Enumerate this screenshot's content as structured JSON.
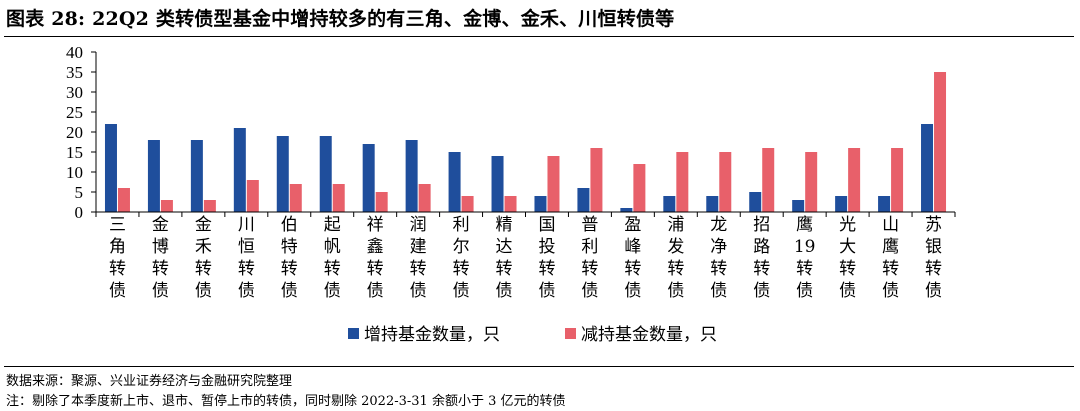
{
  "figure": {
    "title": "图表 28:  22Q2 类转债型基金中增持较多的有三角、金博、金禾、川恒转债等",
    "source": "数据来源：聚源、兴业证券经济与金融研究院整理",
    "note": "注：剔除了本季度新上市、退市、暂停上市的转债，同时剔除 2022-3-31 余额小于 3 亿元的转债"
  },
  "colors": {
    "increase": "#1f4e9c",
    "decrease": "#e8606a"
  },
  "chart_data": {
    "type": "bar",
    "title": "",
    "xlabel": "",
    "ylabel": "",
    "ylim": [
      0,
      40
    ],
    "yticks": [
      0,
      5,
      10,
      15,
      20,
      25,
      30,
      35,
      40
    ],
    "grid": false,
    "legend": "bottom",
    "categories": [
      "三角转债",
      "金博转债",
      "金禾转债",
      "川恒转债",
      "伯特转债",
      "起帆转债",
      "祥鑫转债",
      "润建转债",
      "利尔转债",
      "精达转债",
      "国投转债",
      "普利转债",
      "盈峰转债",
      "浦发转债",
      "龙净转债",
      "招路转债",
      "鹰19转债",
      "光大转债",
      "山鹰转债",
      "苏银转债"
    ],
    "series": [
      {
        "name": "增持基金数量，只",
        "values": [
          22,
          18,
          18,
          21,
          19,
          19,
          17,
          18,
          15,
          14,
          4,
          6,
          1,
          4,
          4,
          5,
          3,
          4,
          4,
          22
        ]
      },
      {
        "name": "减持基金数量，只",
        "values": [
          6,
          3,
          3,
          8,
          7,
          7,
          5,
          7,
          4,
          4,
          14,
          16,
          12,
          15,
          15,
          16,
          15,
          16,
          16,
          35
        ]
      }
    ]
  }
}
